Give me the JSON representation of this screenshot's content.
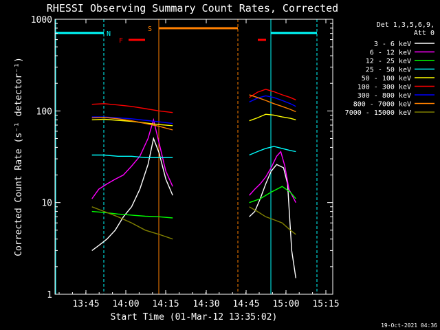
{
  "chart_data": {
    "type": "line",
    "title": "RHESSI Observing Summary Count Rates, Corrected",
    "xlabel": "Start Time (01-Mar-12 13:35:02)",
    "ylabel": "Corrected Count Rate (s⁻¹ detector⁻¹)",
    "yscale": "log",
    "ylim": [
      1,
      1000
    ],
    "xlim_minutes_after_start": [
      0,
      101.5
    ],
    "x_ticks": [
      "13:45",
      "14:00",
      "14:15",
      "14:30",
      "14:45",
      "15:00",
      "15:15"
    ],
    "y_ticks": [
      "1",
      "10",
      "100",
      "1000"
    ],
    "legend_header": [
      "Det 1,3,5,6,9,",
      "Att 0"
    ],
    "timestamp": "19-Oct-2021 04:36",
    "markers": [
      {
        "label": "N",
        "color": "#00ffff"
      },
      {
        "label": "F",
        "color": "#ff0000"
      },
      {
        "label": "S",
        "color": "#ff8000"
      }
    ],
    "series": [
      {
        "name": "3 - 6 keV",
        "color": "#ffffff",
        "segments": [
          {
            "x": [
              13.5,
              16,
              19,
              22,
              25,
              28,
              31,
              34,
              36,
              38,
              40.5,
              43
            ],
            "y": [
              3,
              3.4,
              4,
              5,
              7,
              9,
              14,
              26,
              50,
              35,
              18,
              12
            ]
          },
          {
            "x": [
              71,
              73,
              75,
              77,
              79,
              81,
              83.5,
              85,
              86.5,
              88
            ],
            "y": [
              7,
              8,
              11,
              16,
              22,
              26,
              24,
              16,
              3,
              1.5
            ]
          }
        ]
      },
      {
        "name": "6 - 12 keV",
        "color": "#ff00ff",
        "segments": [
          {
            "x": [
              13.5,
              16,
              19,
              22,
              25,
              28,
              31,
              34,
              36,
              38,
              40.5,
              43
            ],
            "y": [
              11,
              14,
              16,
              18,
              20,
              25,
              32,
              50,
              80,
              45,
              22,
              15
            ]
          },
          {
            "x": [
              71,
              73,
              75,
              77,
              79,
              81,
              82.5,
              84,
              85.5,
              88
            ],
            "y": [
              12,
              14,
              16,
              19,
              24,
              32,
              36,
              25,
              14,
              10
            ]
          }
        ]
      },
      {
        "name": "12 - 25 keV",
        "color": "#00ff00",
        "segments": [
          {
            "x": [
              13.5,
              18,
              23,
              28,
              33,
              38,
              43
            ],
            "y": [
              8,
              7.8,
              7.5,
              7.3,
              7.1,
              7,
              6.8
            ]
          },
          {
            "x": [
              71,
              75,
              79,
              83,
              86,
              88
            ],
            "y": [
              10,
              11,
              13,
              15,
              13,
              11
            ]
          }
        ]
      },
      {
        "name": "25 - 50 keV",
        "color": "#00ffff",
        "segments": [
          {
            "x": [
              13.5,
              18,
              23,
              28,
              33,
              38,
              43
            ],
            "y": [
              33,
              33,
              32,
              32,
              31,
              31,
              31
            ]
          },
          {
            "x": [
              71,
              74,
              77,
              80,
              83,
              86,
              88
            ],
            "y": [
              33,
              36,
              39,
              41,
              39,
              37,
              36
            ]
          }
        ]
      },
      {
        "name": "50 - 100 keV",
        "color": "#ffff00",
        "segments": [
          {
            "x": [
              13.5,
              18,
              23,
              28,
              33,
              38,
              43
            ],
            "y": [
              80,
              81,
              79,
              77,
              74,
              71,
              69
            ]
          },
          {
            "x": [
              71,
              74,
              77,
              80,
              83,
              86,
              88
            ],
            "y": [
              78,
              84,
              92,
              90,
              86,
              83,
              80
            ]
          }
        ]
      },
      {
        "name": "100 - 300 keV",
        "color": "#ff0000",
        "segments": [
          {
            "x": [
              13.5,
              18,
              23,
              28,
              33,
              38,
              43
            ],
            "y": [
              118,
              120,
              116,
              112,
              106,
              100,
              96
            ]
          },
          {
            "x": [
              71,
              74,
              77,
              80,
              83,
              86,
              88
            ],
            "y": [
              140,
              160,
              172,
              162,
              150,
              140,
              132
            ]
          }
        ]
      },
      {
        "name": "300 - 800 keV",
        "color": "#0000ff",
        "segments": [
          {
            "x": [
              13.5,
              18,
              23,
              28,
              33,
              38,
              43
            ],
            "y": [
              86,
              86,
              84,
              82,
              79,
              76,
              73
            ]
          },
          {
            "x": [
              71,
              74,
              77,
              80,
              83,
              86,
              88
            ],
            "y": [
              125,
              138,
              146,
              140,
              130,
              120,
              112
            ]
          }
        ]
      },
      {
        "name": "800 - 7000 keV",
        "color": "#ff8000",
        "segments": [
          {
            "x": [
              13.5,
              18,
              23,
              28,
              33,
              38,
              43
            ],
            "y": [
              84,
              85,
              82,
              78,
              73,
              68,
              62
            ]
          },
          {
            "x": [
              71,
              74,
              77,
              80,
              83,
              86,
              88
            ],
            "y": [
              150,
              140,
              130,
              120,
              112,
              104,
              98
            ]
          }
        ]
      },
      {
        "name": "7000 - 15000 keV",
        "color": "#808000",
        "segments": [
          {
            "x": [
              13.5,
              18,
              23,
              28,
              33,
              38,
              43
            ],
            "y": [
              9,
              8,
              7,
              6,
              5,
              4.5,
              4
            ]
          },
          {
            "x": [
              71,
              74,
              77,
              80,
              83,
              86,
              88
            ],
            "y": [
              9,
              8,
              7,
              6.5,
              6,
              5,
              4.5
            ]
          }
        ]
      }
    ]
  }
}
